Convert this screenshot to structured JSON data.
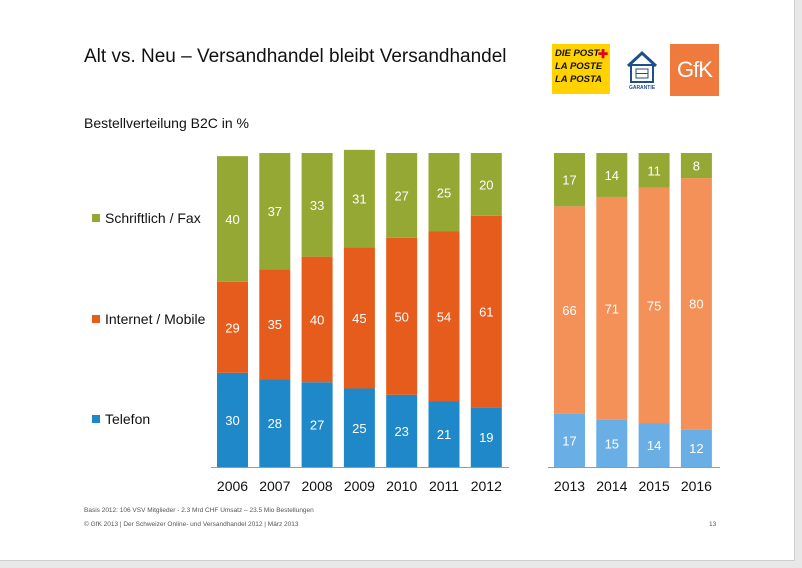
{
  "slide": {
    "title": "Alt vs. Neu – Versandhandel bleibt Versandhandel",
    "subtitle": "Bestellverteilung B2C in %",
    "logos": {
      "post_lines": [
        "DIE POST",
        "LA POSTE",
        "LA POSTA"
      ],
      "garantie_label": "GARANTIE",
      "gfk_text": "GfK"
    },
    "footnote_1": "Basis 2012: 106 VSV Mitglieder   - 2.3 Mrd CHF Umsatz – 23.5  Mio Bestellungen",
    "footnote_2": "© GfK 2013 | Der Schweizer Online- und Versandhandel 2012 | März 2013",
    "page_number": "13"
  },
  "legend": [
    {
      "label": "Schriftlich / Fax",
      "color": "#94a833"
    },
    {
      "label": "Internet / Mobile",
      "color": "#e65c1c"
    },
    {
      "label": "Telefon",
      "color": "#1e88c8"
    }
  ],
  "colors": {
    "historic": {
      "Telefon": "#1e88c8",
      "Internet / Mobile": "#e65c1c",
      "Schriftlich / Fax": "#94a833"
    },
    "forecast": {
      "Telefon": "#6aaee6",
      "Internet / Mobile": "#f39159",
      "Schriftlich / Fax": "#94a833"
    },
    "label_text": "#ffffff"
  },
  "chart_data": [
    {
      "type": "bar",
      "stacked": true,
      "categories": [
        "2006",
        "2007",
        "2008",
        "2009",
        "2010",
        "2011",
        "2012"
      ],
      "series": [
        {
          "name": "Telefon",
          "values": [
            30,
            28,
            27,
            25,
            23,
            21,
            19
          ]
        },
        {
          "name": "Internet / Mobile",
          "values": [
            29,
            35,
            40,
            45,
            50,
            54,
            61
          ]
        },
        {
          "name": "Schriftlich / Fax",
          "values": [
            40,
            37,
            33,
            31,
            27,
            25,
            20
          ]
        }
      ],
      "ylim": [
        0,
        100
      ],
      "title": "Bestellverteilung B2C in %"
    },
    {
      "type": "bar",
      "stacked": true,
      "categories": [
        "2013",
        "2014",
        "2015",
        "2016"
      ],
      "series": [
        {
          "name": "Telefon",
          "values": [
            17,
            15,
            14,
            12
          ]
        },
        {
          "name": "Internet / Mobile",
          "values": [
            66,
            71,
            75,
            80
          ]
        },
        {
          "name": "Schriftlich / Fax",
          "values": [
            17,
            14,
            11,
            8
          ]
        }
      ],
      "ylim": [
        0,
        100
      ]
    }
  ]
}
